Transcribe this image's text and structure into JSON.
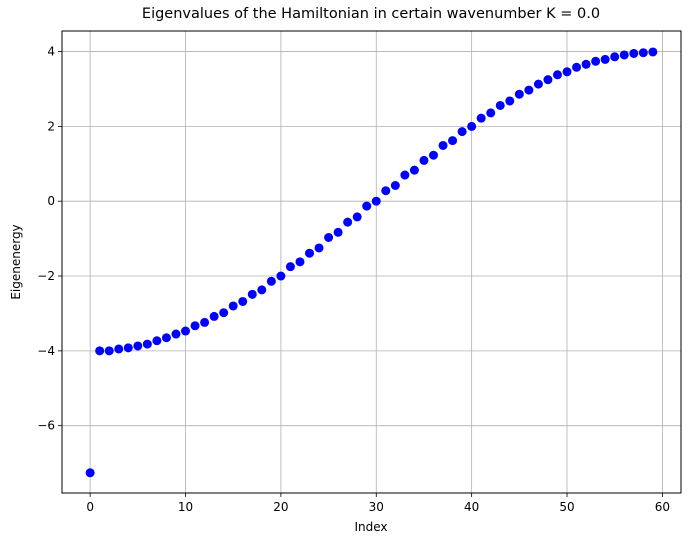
{
  "chart_data": {
    "type": "scatter",
    "title": "Eigenvalues of the Hamiltonian in certain wavenumber K = 0.0",
    "xlabel": "Index",
    "ylabel": "Eigenenergy",
    "xlim": [
      -2.95,
      61.95
    ],
    "ylim": [
      -7.8,
      4.55
    ],
    "xticks": [
      0,
      10,
      20,
      30,
      40,
      50,
      60
    ],
    "yticks": [
      -6,
      -4,
      -2,
      0,
      2,
      4
    ],
    "xtick_labels": [
      "0",
      "10",
      "20",
      "30",
      "40",
      "50",
      "60"
    ],
    "ytick_labels": [
      "−6",
      "−4",
      "−2",
      "0",
      "2",
      "4"
    ],
    "grid": true,
    "marker_color": "#0000ff",
    "x": [
      0,
      1,
      2,
      3,
      4,
      5,
      6,
      7,
      8,
      9,
      10,
      11,
      12,
      13,
      14,
      15,
      16,
      17,
      18,
      19,
      20,
      21,
      22,
      23,
      24,
      25,
      26,
      27,
      28,
      29,
      30,
      31,
      32,
      33,
      34,
      35,
      36,
      37,
      38,
      39,
      40,
      41,
      42,
      43,
      44,
      45,
      46,
      47,
      48,
      49,
      50,
      51,
      52,
      53,
      54,
      55,
      56,
      57,
      58,
      59
    ],
    "values": [
      -7.26,
      -4.0,
      -4.0,
      -3.95,
      -3.92,
      -3.87,
      -3.82,
      -3.73,
      -3.65,
      -3.55,
      -3.47,
      -3.33,
      -3.24,
      -3.08,
      -2.98,
      -2.8,
      -2.68,
      -2.49,
      -2.37,
      -2.14,
      -2.0,
      -1.75,
      -1.62,
      -1.39,
      -1.25,
      -0.97,
      -0.83,
      -0.56,
      -0.42,
      -0.13,
      0.0,
      0.28,
      0.42,
      0.7,
      0.83,
      1.09,
      1.23,
      1.49,
      1.62,
      1.86,
      2.0,
      2.22,
      2.36,
      2.56,
      2.68,
      2.86,
      2.97,
      3.13,
      3.25,
      3.38,
      3.46,
      3.58,
      3.66,
      3.74,
      3.79,
      3.86,
      3.91,
      3.95,
      3.97,
      3.99
    ]
  }
}
